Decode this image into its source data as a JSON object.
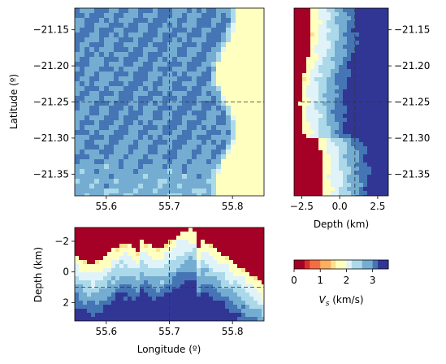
{
  "chart_data": [
    {
      "type": "heatmap",
      "panel": "map-view",
      "xlabel": "",
      "ylabel": "Latitude (º)",
      "xlim": [
        55.55,
        55.85
      ],
      "ylim": [
        -21.38,
        -21.12
      ],
      "xticks": [
        "55.6",
        "55.7",
        "55.8"
      ],
      "xtick_values": [
        55.6,
        55.7,
        55.8
      ],
      "yticks": [
        "−21.15",
        "−21.20",
        "−21.25",
        "−21.30",
        "−21.35"
      ],
      "ytick_values": [
        -21.15,
        -21.2,
        -21.25,
        -21.3,
        -21.35
      ],
      "crosshair": {
        "x": 55.7,
        "y": -21.25
      },
      "z_description_values": {
        "center": 3.0,
        "edge": 2.1,
        "far_east": 1.9
      }
    },
    {
      "type": "heatmap",
      "panel": "latitude-depth-section",
      "xlabel": "Depth (km)",
      "ylabel": "",
      "xlim": [
        -3.0,
        3.2
      ],
      "ylim": [
        -21.38,
        -21.12
      ],
      "xticks": [
        "−2.5",
        "0.0",
        "2.5"
      ],
      "xtick_values": [
        -2.5,
        0.0,
        2.5
      ],
      "yticks": [
        "−21.15",
        "−21.20",
        "−21.25",
        "−21.30",
        "−21.35"
      ],
      "ytick_values": [
        -21.15,
        -21.2,
        -21.25,
        -21.3,
        -21.35
      ],
      "crosshair": {
        "x": 1.0,
        "y": -21.25
      }
    },
    {
      "type": "heatmap",
      "panel": "longitude-depth-section",
      "xlabel": "Longitude (º)",
      "ylabel": "Depth (km)",
      "xlim": [
        55.55,
        55.85
      ],
      "ylim": [
        3.2,
        -2.9
      ],
      "xticks": [
        "55.6",
        "55.7",
        "55.8"
      ],
      "xtick_values": [
        55.6,
        55.7,
        55.8
      ],
      "yticks": [
        "−2",
        "0",
        "2"
      ],
      "ytick_values": [
        -2,
        0,
        2
      ],
      "crosshair": {
        "x": 55.7,
        "y": 1.0
      }
    },
    {
      "type": "colorbar",
      "label": "V_s (km/s)",
      "label_main": "V",
      "label_sub": "s",
      "label_rest": " (km/s)",
      "range": [
        0,
        3.6
      ],
      "ticks": [
        "0",
        "1",
        "2",
        "3"
      ],
      "tick_values": [
        0,
        1,
        2,
        3
      ],
      "colormap": [
        "#a50026",
        "#d73027",
        "#f46d43",
        "#fdae61",
        "#fee090",
        "#ffffbf",
        "#e0f3f8",
        "#abd9e9",
        "#74add1",
        "#4575b4",
        "#313695"
      ]
    }
  ]
}
